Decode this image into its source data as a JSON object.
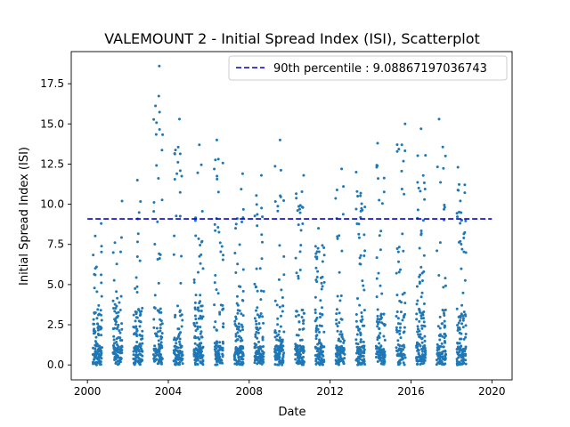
{
  "chart_data": {
    "type": "scatter",
    "title": "VALEMOUNT 2 - Initial Spread Index (ISI), Scatterplot",
    "xlabel": "Date",
    "ylabel": "Initial Spread Index (ISI)",
    "xlim": [
      1999.2,
      2021.0
    ],
    "ylim": [
      -0.93,
      19.5
    ],
    "x_ticks": [
      2000,
      2004,
      2008,
      2012,
      2016,
      2020
    ],
    "x_tick_labels": [
      "2000",
      "2004",
      "2008",
      "2012",
      "2016",
      "2020"
    ],
    "y_ticks": [
      0.0,
      2.5,
      5.0,
      7.5,
      10.0,
      12.5,
      15.0,
      17.5
    ],
    "y_tick_labels": [
      "0.0",
      "2.5",
      "5.0",
      "7.5",
      "10.0",
      "12.5",
      "15.0",
      "17.5"
    ],
    "legend": {
      "placement": "top-right",
      "entries": [
        {
          "label": "90th percentile : 9.08867197036743",
          "style": "dashed-line",
          "color": "#0000cc"
        }
      ]
    },
    "reference_lines": [
      {
        "name": "90th percentile : 9.08867197036743",
        "y": 9.08867197036743,
        "x_range": [
          2000.0,
          2020.0
        ],
        "style": "dashed",
        "color": "#0000cc"
      }
    ],
    "grid": false,
    "point_color": "#1f77b4",
    "series": [
      {
        "seasons": [
          {
            "year": 2000,
            "max": 8.8
          },
          {
            "year": 2001,
            "max": 10.2
          },
          {
            "year": 2002,
            "max": 11.5
          },
          {
            "year": 2003,
            "max": 18.6
          },
          {
            "year": 2004,
            "max": 15.3
          },
          {
            "year": 2005,
            "max": 13.7
          },
          {
            "year": 2006,
            "max": 14.0
          },
          {
            "year": 2007,
            "max": 11.9
          },
          {
            "year": 2008,
            "max": 11.8
          },
          {
            "year": 2009,
            "max": 14.0
          },
          {
            "year": 2010,
            "max": 11.8
          },
          {
            "year": 2011,
            "max": 8.5
          },
          {
            "year": 2012,
            "max": 12.2
          },
          {
            "year": 2013,
            "max": 12.0
          },
          {
            "year": 2014,
            "max": 13.8
          },
          {
            "year": 2015,
            "max": 15.0
          },
          {
            "year": 2016,
            "max": 14.7
          },
          {
            "year": 2017,
            "max": 15.3
          },
          {
            "year": 2018,
            "max": 12.3
          }
        ]
      }
    ]
  }
}
